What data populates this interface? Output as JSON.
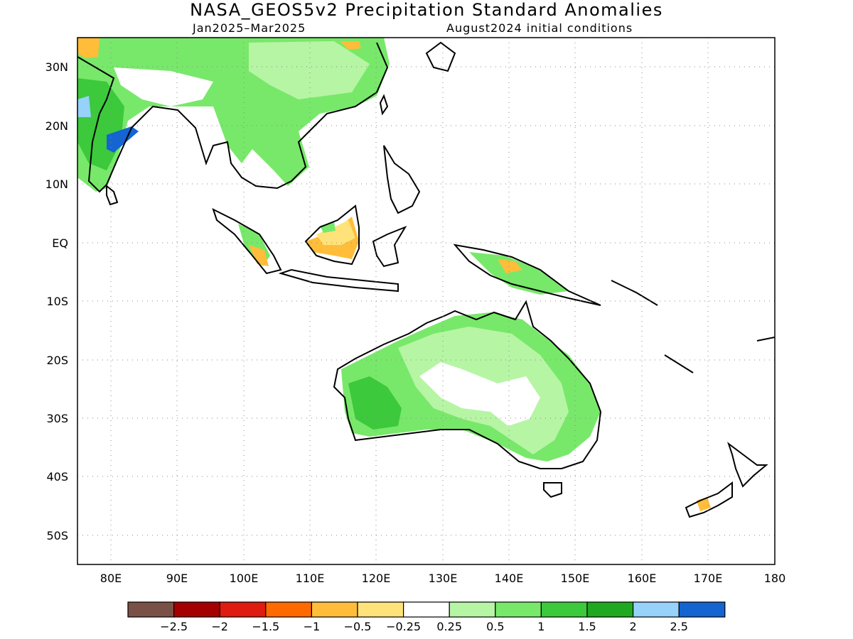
{
  "title": "NASA_GEOS5v2 Precipitation Standard Anomalies",
  "subtitle_left": "Jan2025–Mar2025",
  "subtitle_right": "August2024 initial conditions",
  "map": {
    "lon_range": [
      75,
      180
    ],
    "lat_range": [
      -55,
      35
    ],
    "lat_ticks": [
      "30N",
      "20N",
      "10N",
      "EQ",
      "10S",
      "20S",
      "30S",
      "40S",
      "50S"
    ],
    "lat_values": [
      30,
      20,
      10,
      0,
      -10,
      -20,
      -30,
      -40,
      -50
    ],
    "lon_ticks": [
      "80E",
      "90E",
      "100E",
      "110E",
      "120E",
      "130E",
      "140E",
      "150E",
      "160E",
      "170E",
      "180"
    ],
    "lon_values": [
      80,
      90,
      100,
      110,
      120,
      130,
      140,
      150,
      160,
      170,
      180
    ],
    "grid": "dotted"
  },
  "legend": {
    "colors": [
      "#7a5147",
      "#a50000",
      "#e01b10",
      "#ff6a00",
      "#ffbd3a",
      "#ffe37a",
      "#ffffff",
      "#b6f5a4",
      "#78e86a",
      "#3cc93c",
      "#20a820",
      "#96d2fa",
      "#1464d2"
    ],
    "labels": [
      "−2.5",
      "−2",
      "−1.5",
      "−1",
      "−0.5",
      "−0.25",
      "0.25",
      "0.5",
      "1",
      "1.5",
      "2",
      "2.5"
    ]
  }
}
